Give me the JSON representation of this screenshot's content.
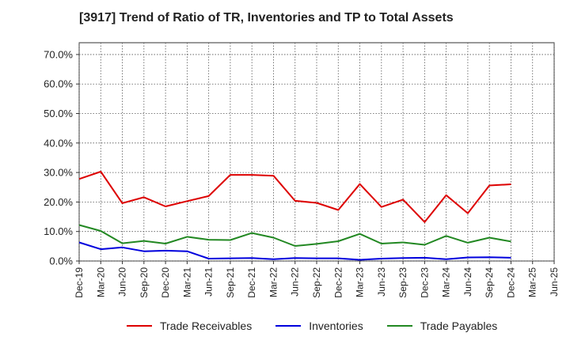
{
  "chart_data": {
    "type": "line",
    "title": "[3917]  Trend of Ratio of TR, Inventories and TP to Total Assets",
    "xlabel": "",
    "ylabel": "",
    "x": [
      "Dec-19",
      "Mar-20",
      "Jun-20",
      "Sep-20",
      "Dec-20",
      "Mar-21",
      "Jun-21",
      "Sep-21",
      "Dec-21",
      "Mar-22",
      "Jun-22",
      "Sep-22",
      "Dec-22",
      "Mar-23",
      "Jun-23",
      "Sep-23",
      "Dec-23",
      "Mar-24",
      "Jun-24",
      "Sep-24",
      "Dec-24",
      "Mar-25"
    ],
    "x_tick_labels": [
      "Dec-19",
      "Mar-20",
      "Jun-20",
      "Sep-20",
      "Dec-20",
      "Mar-21",
      "Jun-21",
      "Sep-21",
      "Dec-21",
      "Mar-22",
      "Jun-22",
      "Sep-22",
      "Dec-22",
      "Mar-23",
      "Jun-23",
      "Sep-23",
      "Dec-23",
      "Mar-24",
      "Jun-24",
      "Sep-24",
      "Dec-24",
      "Mar-25",
      "Jun-25"
    ],
    "y_tick_labels": [
      "0.0%",
      "10.0%",
      "20.0%",
      "30.0%",
      "40.0%",
      "50.0%",
      "60.0%",
      "70.0%"
    ],
    "ylim": [
      0,
      74
    ],
    "grid": true,
    "legend_placement": "bottom",
    "series": [
      {
        "name": "Trade Receivables",
        "color": "#dd0000",
        "values": [
          27.8,
          30.3,
          19.6,
          21.6,
          18.5,
          20.3,
          22.0,
          29.2,
          29.2,
          28.9,
          20.4,
          19.7,
          17.3,
          26.1,
          18.3,
          20.8,
          13.2,
          22.3,
          16.2,
          25.6,
          26.0,
          null
        ]
      },
      {
        "name": "Inventories",
        "color": "#0000dd",
        "values": [
          6.3,
          4.0,
          4.6,
          3.3,
          3.5,
          3.3,
          0.8,
          0.9,
          1.0,
          0.6,
          1.0,
          0.9,
          0.9,
          0.4,
          0.8,
          1.0,
          1.1,
          0.6,
          1.2,
          1.3,
          1.1,
          null
        ]
      },
      {
        "name": "Trade Payables",
        "color": "#228822",
        "values": [
          12.2,
          10.2,
          6.0,
          6.8,
          5.9,
          8.2,
          7.2,
          7.1,
          9.5,
          7.9,
          5.1,
          5.8,
          6.7,
          9.2,
          5.9,
          6.3,
          5.5,
          8.5,
          6.2,
          7.9,
          6.6,
          null
        ]
      }
    ]
  }
}
